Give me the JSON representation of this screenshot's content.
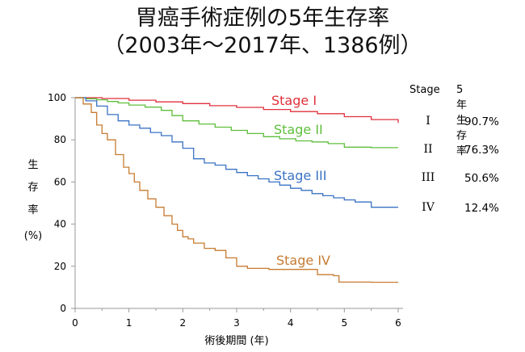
{
  "title": {
    "line1": "胃癌手術症例の5年生存率",
    "line2": "（2003年～2017年、1386例）"
  },
  "table": {
    "header_stage": "Stage",
    "header_rate": "5年生存率",
    "rows": [
      {
        "stage": "I",
        "rate": "90.7%"
      },
      {
        "stage": "II",
        "rate": "76.3%"
      },
      {
        "stage": "III",
        "rate": "50.6%"
      },
      {
        "stage": "IV",
        "rate": "12.4%"
      }
    ]
  },
  "chart_data": {
    "type": "line",
    "step": true,
    "xlabel": "術後期間 (年)",
    "ylabel": [
      "生",
      "存",
      "率",
      "(%)"
    ],
    "xlim": [
      0,
      6
    ],
    "ylim": [
      0,
      100
    ],
    "xticks": [
      0,
      1,
      2,
      3,
      4,
      5,
      6
    ],
    "yticks": [
      0,
      20,
      40,
      60,
      80,
      100
    ],
    "grid": false,
    "series": [
      {
        "name": "Stage I",
        "color": "#e0303c",
        "x": [
          0,
          0.5,
          1.0,
          1.5,
          2.0,
          2.5,
          3.0,
          3.5,
          4.0,
          4.5,
          5.0,
          5.5,
          6.0
        ],
        "y": [
          100,
          99.6,
          98.8,
          98.0,
          97.2,
          96.2,
          95.4,
          94.4,
          93.4,
          92.4,
          91.0,
          89.6,
          88.0
        ]
      },
      {
        "name": "Stage II",
        "color": "#5fbe3c",
        "x": [
          0,
          0.2,
          0.4,
          0.6,
          0.8,
          1.0,
          1.3,
          1.6,
          1.8,
          2.0,
          2.3,
          2.6,
          2.9,
          3.2,
          3.5,
          3.8,
          4.1,
          4.4,
          4.7,
          5.0,
          5.5,
          6.0
        ],
        "y": [
          100,
          99.5,
          99,
          98.2,
          97.5,
          96.5,
          95.5,
          94,
          91.5,
          89,
          87.5,
          86,
          84.5,
          83,
          81.5,
          80.5,
          79.5,
          79,
          78.2,
          76.5,
          76.3,
          76.3
        ]
      },
      {
        "name": "Stage III",
        "color": "#3a72c4",
        "x": [
          0,
          0.2,
          0.4,
          0.6,
          0.8,
          1.0,
          1.2,
          1.4,
          1.6,
          1.8,
          2.0,
          2.2,
          2.4,
          2.6,
          2.8,
          3.0,
          3.2,
          3.4,
          3.6,
          3.8,
          4.0,
          4.2,
          4.4,
          4.6,
          4.8,
          5.0,
          5.2,
          5.5,
          6.0
        ],
        "y": [
          100,
          98.5,
          96,
          92,
          89,
          87,
          85.5,
          83.5,
          82,
          79,
          76,
          71,
          69,
          68,
          66,
          64.5,
          63,
          61.5,
          60,
          58.5,
          57,
          56,
          54.5,
          53.5,
          52.5,
          51.5,
          50.5,
          48,
          48
        ]
      },
      {
        "name": "Stage IV",
        "color": "#c77b32",
        "x": [
          0,
          0.15,
          0.3,
          0.4,
          0.5,
          0.6,
          0.75,
          0.9,
          1.0,
          1.1,
          1.2,
          1.35,
          1.5,
          1.65,
          1.8,
          1.9,
          2.0,
          2.1,
          2.2,
          2.4,
          2.6,
          2.8,
          3.0,
          3.2,
          3.6,
          4.0,
          4.5,
          4.8,
          4.9,
          5.5,
          6.0
        ],
        "y": [
          100,
          97,
          93,
          87,
          83,
          80,
          73,
          67,
          64,
          60,
          56,
          52,
          48,
          44,
          40,
          37,
          34,
          33,
          31,
          28.5,
          27.5,
          24,
          20,
          19,
          18.5,
          18.5,
          16,
          15.5,
          12.5,
          12.4,
          12.4
        ]
      }
    ],
    "labels": [
      {
        "text": "Stage I",
        "color": "#e0303c"
      },
      {
        "text": "Stage II",
        "color": "#5fbe3c"
      },
      {
        "text": "Stage III",
        "color": "#3a72c4"
      },
      {
        "text": "Stage IV",
        "color": "#c77b32"
      }
    ]
  }
}
